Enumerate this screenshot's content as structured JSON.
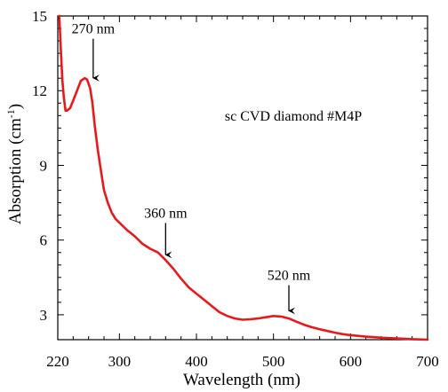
{
  "chart_data": {
    "type": "line",
    "xlabel": "Wavelength (nm)",
    "ylabel": {
      "main": "Absorption (cm",
      "sup": "-1",
      "close": ")"
    },
    "xlim": [
      220,
      700
    ],
    "ylim": [
      2,
      15
    ],
    "xticks": [
      220,
      300,
      400,
      500,
      600,
      700
    ],
    "yticks": [
      3,
      6,
      9,
      12,
      15
    ],
    "grid": false,
    "series": [
      {
        "color": "#e8191b",
        "x": [
          222,
          224,
          226,
          228,
          230,
          232,
          236,
          240,
          245,
          250,
          255,
          258,
          262,
          265,
          268,
          272,
          276,
          280,
          285,
          290,
          295,
          300,
          310,
          320,
          330,
          340,
          350,
          360,
          370,
          380,
          390,
          400,
          410,
          420,
          430,
          440,
          450,
          460,
          470,
          480,
          490,
          500,
          510,
          520,
          530,
          540,
          550,
          560,
          570,
          580,
          590,
          600,
          620,
          640,
          660,
          680,
          700
        ],
        "y": [
          15.0,
          13.6,
          12.4,
          11.7,
          11.2,
          11.2,
          11.3,
          11.6,
          12.0,
          12.4,
          12.5,
          12.45,
          12.1,
          11.5,
          10.6,
          9.6,
          8.8,
          8.0,
          7.5,
          7.1,
          6.85,
          6.7,
          6.4,
          6.15,
          5.85,
          5.65,
          5.5,
          5.2,
          4.85,
          4.45,
          4.1,
          3.85,
          3.6,
          3.35,
          3.1,
          2.95,
          2.85,
          2.8,
          2.82,
          2.85,
          2.9,
          2.95,
          2.93,
          2.85,
          2.72,
          2.6,
          2.5,
          2.42,
          2.35,
          2.28,
          2.22,
          2.18,
          2.12,
          2.08,
          2.05,
          2.02,
          2.0
        ]
      }
    ],
    "annotations": [
      {
        "text": "270 nm",
        "x": 266,
        "y": 12.4,
        "label_y": 14.3
      },
      {
        "text": "360 nm",
        "x": 360,
        "y": 5.3,
        "label_y": 6.9
      },
      {
        "text": "520 nm",
        "x": 520,
        "y": 3.05,
        "label_y": 4.4
      }
    ],
    "inset_text": "sc CVD diamond #M4P"
  }
}
